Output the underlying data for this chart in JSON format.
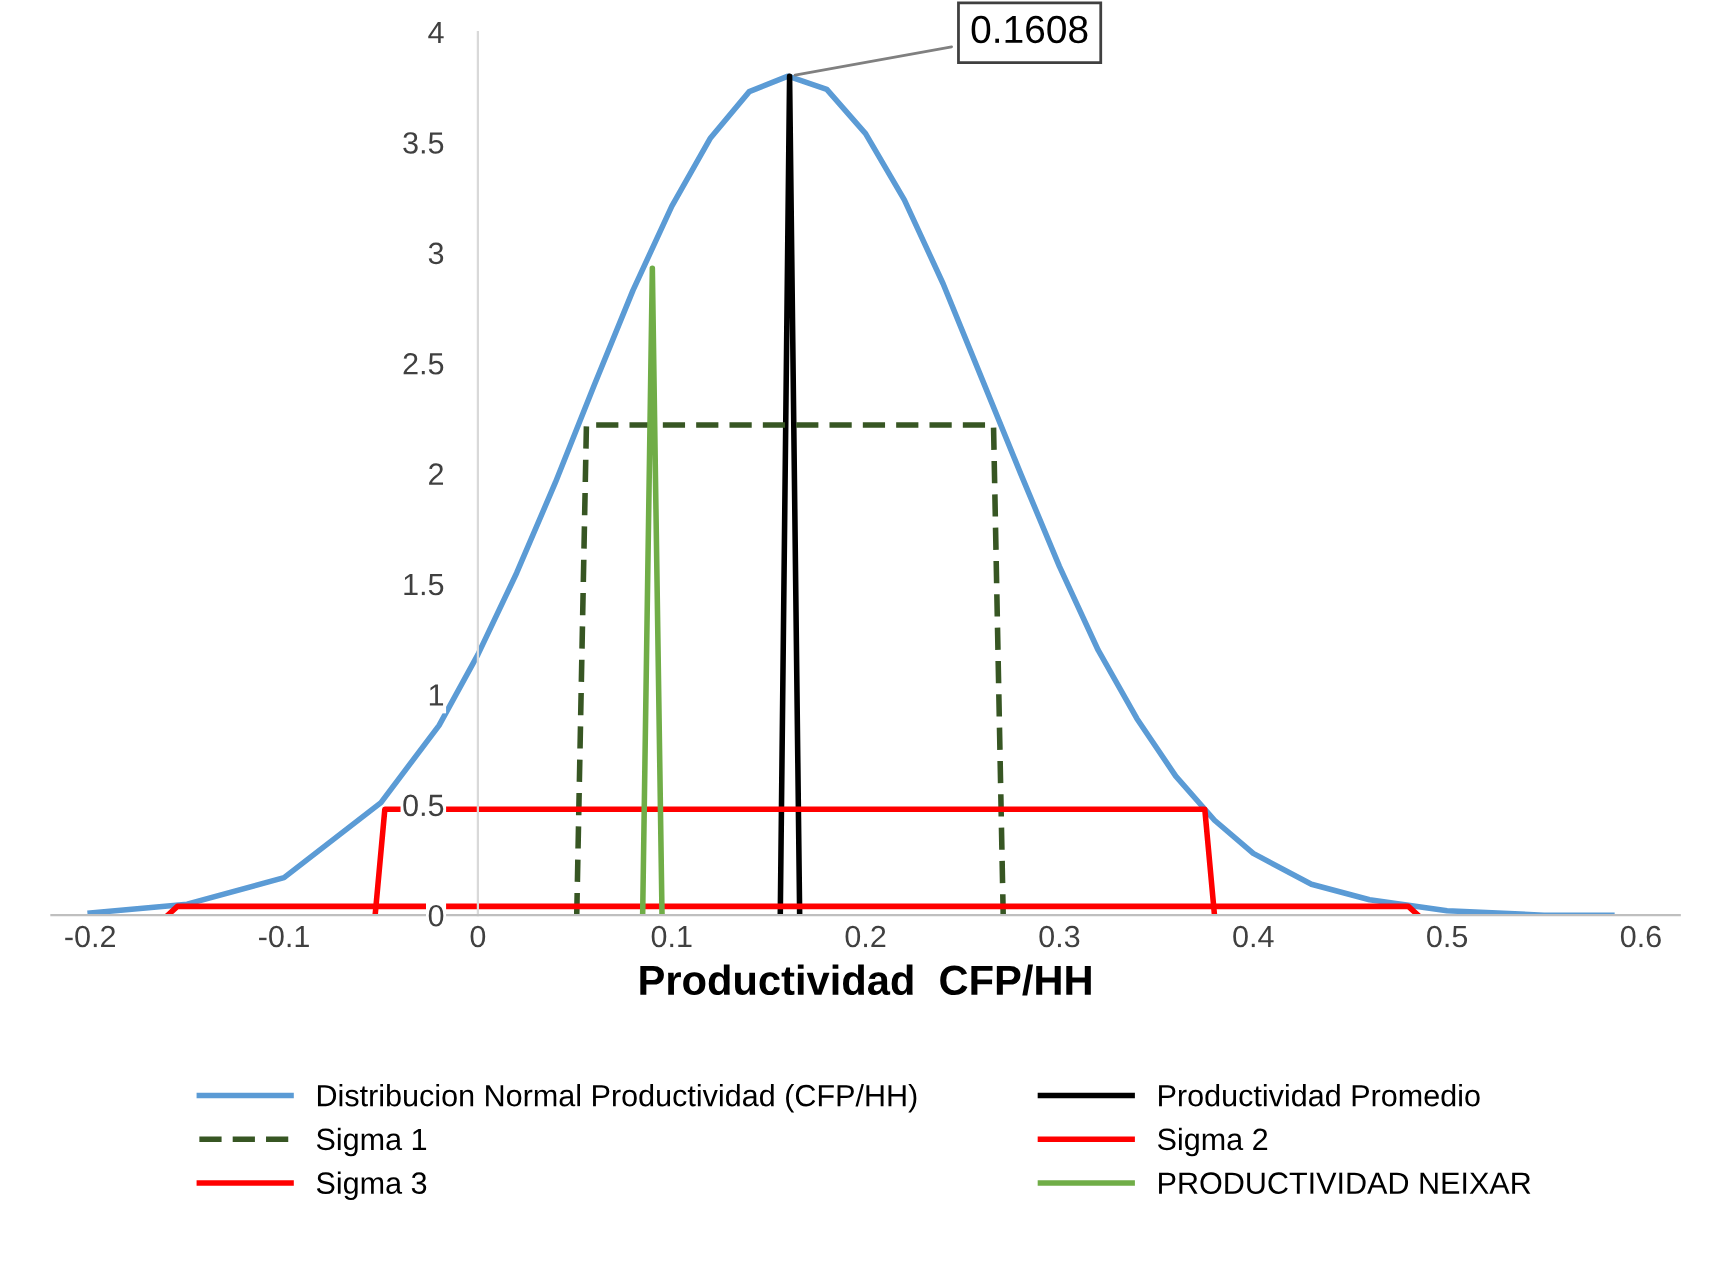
{
  "chart_data": {
    "type": "line",
    "xlabel": "Productividad  CFP/HH",
    "xlim": [
      -0.22,
      0.62
    ],
    "xticks": [
      -0.2,
      -0.1,
      0,
      0.1,
      0.2,
      0.3,
      0.4,
      0.5,
      0.6
    ],
    "ylim": [
      0,
      4
    ],
    "yticks": [
      0,
      0.5,
      1,
      1.5,
      2,
      2.5,
      3,
      3.5,
      4
    ],
    "grid": false,
    "legend": "bottom",
    "marker": "none",
    "annotations": [
      {
        "text": "0.1608",
        "x": 0.1608,
        "y": 3.8
      }
    ],
    "series": [
      {
        "name": "Distribucion Normal Productividad (CFP/HH)",
        "color": "#5b9bd5",
        "line_style": "solid",
        "x": [
          -0.2,
          -0.15,
          -0.1,
          -0.05,
          -0.02,
          0,
          0.02,
          0.04,
          0.06,
          0.08,
          0.1,
          0.12,
          0.14,
          0.16,
          0.18,
          0.2,
          0.22,
          0.24,
          0.26,
          0.28,
          0.3,
          0.32,
          0.34,
          0.36,
          0.38,
          0.4,
          0.43,
          0.46,
          0.5,
          0.55,
          0.585
        ],
        "values": [
          0.01,
          0.05,
          0.17,
          0.51,
          0.86,
          1.18,
          1.55,
          1.96,
          2.4,
          2.83,
          3.21,
          3.52,
          3.73,
          3.8,
          3.74,
          3.54,
          3.24,
          2.86,
          2.43,
          2.0,
          1.58,
          1.2,
          0.89,
          0.63,
          0.43,
          0.28,
          0.14,
          0.07,
          0.02,
          0.0,
          0.0
        ]
      },
      {
        "name": "Productividad Promedio",
        "color": "#000000",
        "line_style": "solid",
        "x": [
          0.156,
          0.1608,
          0.166
        ],
        "values": [
          0,
          3.8,
          0
        ]
      },
      {
        "name": "Sigma 1",
        "color": "#375623",
        "line_style": "dashed",
        "x": [
          0.051,
          0.056,
          0.266,
          0.271
        ],
        "values": [
          0,
          2.22,
          2.22,
          0
        ]
      },
      {
        "name": "Sigma 2",
        "color": "#ff0000",
        "line_style": "solid",
        "x": [
          -0.053,
          -0.048,
          0.375,
          0.38
        ],
        "values": [
          0,
          0.48,
          0.48,
          0
        ]
      },
      {
        "name": "Sigma 3",
        "color": "#ff0000",
        "line_style": "solid",
        "x": [
          -0.16,
          -0.155,
          0.48,
          0.485
        ],
        "values": [
          0,
          0.04,
          0.04,
          0
        ]
      },
      {
        "name": "PRODUCTIVIDAD NEIXAR",
        "color": "#70ad47",
        "line_style": "solid",
        "x": [
          0.085,
          0.09,
          0.095
        ],
        "values": [
          0,
          2.93,
          0
        ]
      }
    ]
  }
}
